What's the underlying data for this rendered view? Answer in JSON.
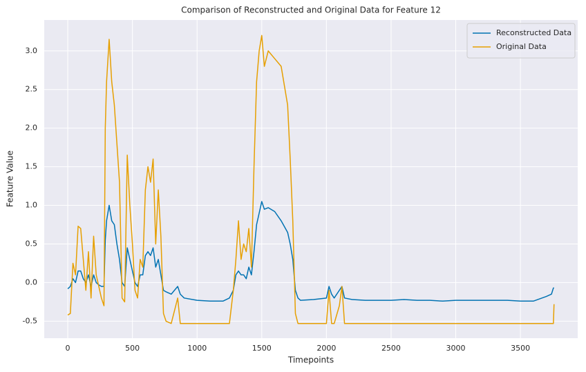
{
  "chart_data": {
    "type": "line",
    "title": "Comparison of Reconstructed and Original Data for Feature 12",
    "x_label": "Timepoints",
    "y_label": "Feature Value",
    "x": [
      0,
      20,
      40,
      60,
      80,
      100,
      120,
      140,
      160,
      180,
      200,
      220,
      240,
      260,
      280,
      290,
      300,
      320,
      340,
      360,
      380,
      400,
      420,
      440,
      460,
      480,
      500,
      520,
      540,
      560,
      580,
      600,
      620,
      640,
      660,
      680,
      700,
      720,
      740,
      760,
      800,
      850,
      870,
      900,
      1000,
      1100,
      1200,
      1250,
      1280,
      1300,
      1320,
      1340,
      1360,
      1380,
      1400,
      1420,
      1440,
      1460,
      1480,
      1500,
      1520,
      1550,
      1600,
      1650,
      1700,
      1720,
      1740,
      1760,
      1780,
      1800,
      1900,
      2000,
      2020,
      2040,
      2060,
      2100,
      2120,
      2140,
      2200,
      2300,
      2400,
      2500,
      2600,
      2700,
      2800,
      2900,
      3000,
      3100,
      3200,
      3300,
      3400,
      3500,
      3600,
      3700,
      3740,
      3755,
      3760
    ],
    "series": [
      {
        "name": "Reconstructed Data",
        "color": "#0072b2",
        "values": [
          -0.08,
          -0.05,
          0.05,
          0.0,
          0.15,
          0.15,
          0.05,
          0.0,
          0.1,
          -0.05,
          0.1,
          0.0,
          -0.03,
          -0.05,
          -0.05,
          0.55,
          0.8,
          1.0,
          0.8,
          0.75,
          0.5,
          0.3,
          0.0,
          -0.05,
          0.45,
          0.3,
          0.15,
          0.0,
          -0.05,
          0.1,
          0.1,
          0.35,
          0.4,
          0.35,
          0.45,
          0.2,
          0.3,
          0.1,
          -0.1,
          -0.12,
          -0.15,
          -0.05,
          -0.15,
          -0.2,
          -0.23,
          -0.24,
          -0.24,
          -0.2,
          -0.1,
          0.1,
          0.15,
          0.1,
          0.1,
          0.05,
          0.2,
          0.1,
          0.4,
          0.75,
          0.9,
          1.05,
          0.95,
          0.97,
          0.92,
          0.8,
          0.65,
          0.5,
          0.3,
          -0.1,
          -0.2,
          -0.23,
          -0.22,
          -0.2,
          -0.05,
          -0.15,
          -0.2,
          -0.1,
          -0.05,
          -0.2,
          -0.22,
          -0.23,
          -0.23,
          -0.23,
          -0.22,
          -0.23,
          -0.23,
          -0.24,
          -0.23,
          -0.23,
          -0.23,
          -0.23,
          -0.23,
          -0.24,
          -0.24,
          -0.18,
          -0.15,
          -0.07,
          -0.07
        ]
      },
      {
        "name": "Original Data",
        "color": "#e69f00",
        "values": [
          -0.42,
          -0.4,
          0.25,
          0.1,
          0.73,
          0.7,
          0.3,
          -0.1,
          0.4,
          -0.2,
          0.6,
          0.1,
          -0.05,
          -0.2,
          -0.3,
          2.0,
          2.6,
          3.15,
          2.6,
          2.3,
          1.8,
          1.3,
          -0.2,
          -0.25,
          1.65,
          1.0,
          0.5,
          -0.1,
          -0.2,
          0.3,
          0.2,
          1.2,
          1.5,
          1.3,
          1.6,
          0.5,
          1.2,
          0.6,
          -0.4,
          -0.5,
          -0.53,
          -0.2,
          -0.53,
          -0.53,
          -0.53,
          -0.53,
          -0.53,
          -0.53,
          -0.1,
          0.3,
          0.8,
          0.3,
          0.5,
          0.4,
          0.7,
          0.2,
          1.5,
          2.6,
          3.0,
          3.2,
          2.8,
          3.0,
          2.9,
          2.8,
          2.3,
          1.6,
          0.8,
          -0.4,
          -0.53,
          -0.53,
          -0.53,
          -0.53,
          -0.1,
          -0.53,
          -0.53,
          -0.3,
          -0.05,
          -0.53,
          -0.53,
          -0.53,
          -0.53,
          -0.53,
          -0.53,
          -0.53,
          -0.53,
          -0.53,
          -0.53,
          -0.53,
          -0.53,
          -0.53,
          -0.53,
          -0.53,
          -0.53,
          -0.53,
          -0.53,
          -0.53,
          -0.28
        ]
      }
    ],
    "xlim": [
      -182,
      3943
    ],
    "ylim": [
      -0.72,
      3.4
    ],
    "xticks": [
      0,
      500,
      1000,
      1500,
      2000,
      2500,
      3000,
      3500
    ],
    "yticks": [
      -0.5,
      {
        "value": 0,
        "label": "0.0"
      },
      0.5,
      {
        "value": 1,
        "label": "1.0"
      },
      1.5,
      {
        "value": 2,
        "label": "2.0"
      },
      2.5,
      {
        "value": 3,
        "label": "3.0"
      }
    ],
    "grid": true,
    "legend_position": "upper right"
  }
}
